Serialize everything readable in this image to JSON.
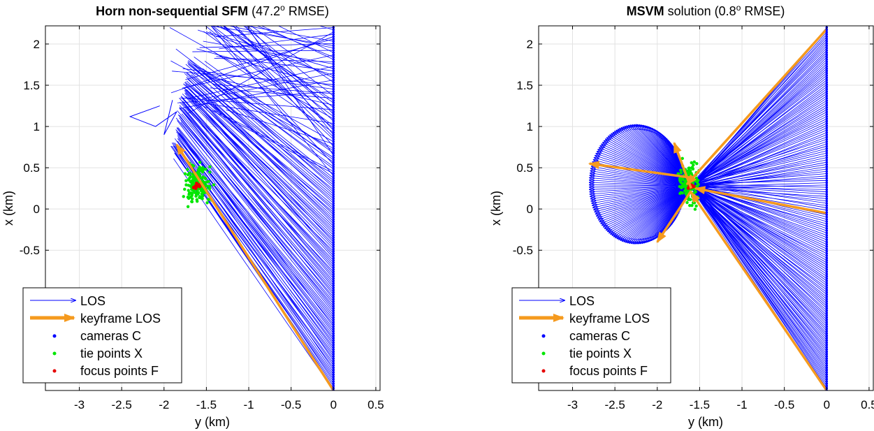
{
  "chart_data": [
    {
      "type": "line",
      "title_bold": "Horn non-sequential SFM",
      "title_rest_a": " (47.2",
      "title_sup": "o",
      "title_rest_b": " RMSE)",
      "xlabel": "y  (km)",
      "ylabel": "x  (km)",
      "xlim": [
        -3.4,
        0.55
      ],
      "ylim": [
        -2.2,
        2.22
      ],
      "xticks": [
        -3,
        -2.5,
        -2,
        -1.5,
        -1,
        -0.5,
        0,
        0.5
      ],
      "xtick_labels": [
        "-3",
        "-2.5",
        "-2",
        "-1.5",
        "-1",
        "-0.5",
        "0",
        "0.5"
      ],
      "yticks": [
        -0.5,
        0,
        0.5,
        1,
        1.5,
        2
      ],
      "ytick_labels": [
        "-0.5",
        "0",
        "0.5",
        "1",
        "1.5",
        "2"
      ],
      "grid": true,
      "legend_position": "bottom-left",
      "cameras": {
        "y": 0,
        "x_from": -2.2,
        "x_to": 2.2,
        "count": 160
      },
      "tie_points": {
        "center": [
          -1.6,
          0.3
        ],
        "spread": [
          0.13,
          0.2
        ],
        "count": 160
      },
      "focus_points": {
        "center": [
          -1.62,
          0.27
        ],
        "spread": [
          0.04,
          0.03
        ],
        "count": 8
      },
      "keyframe_los": [
        {
          "from": [
            0,
            -2.2
          ],
          "to": [
            -1.85,
            0.78
          ]
        }
      ],
      "los_target_band": {
        "x_from": 0.35,
        "x_to": 2.2,
        "y_from": -1.95,
        "y_to": -1.45
      },
      "outlier_path": [
        [
          -2.05,
          1.25
        ],
        [
          -2.4,
          1.12
        ],
        [
          -2.1,
          1.0
        ],
        [
          -1.85,
          1.18
        ],
        [
          -2.0,
          0.9
        ],
        [
          -1.9,
          1.32
        ]
      ]
    },
    {
      "type": "line",
      "title_bold": "MSVM",
      "title_rest_a": " solution (0.8",
      "title_sup": "o",
      "title_rest_b": " RMSE)",
      "xlabel": "y  (km)",
      "ylabel": "x  (km)",
      "xlim": [
        -3.4,
        0.55
      ],
      "ylim": [
        -2.2,
        2.22
      ],
      "xticks": [
        -3,
        -2.5,
        -2,
        -1.5,
        -1,
        -0.5,
        0,
        0.5
      ],
      "xtick_labels": [
        "-3",
        "-2.5",
        "-2",
        "-1.5",
        "-1",
        "-0.5",
        "0",
        "0.5"
      ],
      "yticks": [
        -0.5,
        0,
        0.5,
        1,
        1.5,
        2
      ],
      "ytick_labels": [
        "-0.5",
        "0",
        "0.5",
        "1",
        "1.5",
        "2"
      ],
      "grid": true,
      "legend_position": "bottom-left",
      "cameras": {
        "y": 0,
        "x_from": -2.2,
        "x_to": 2.2,
        "count": 160
      },
      "tie_points": {
        "center": [
          -1.62,
          0.3
        ],
        "spread": [
          0.1,
          0.22
        ],
        "count": 160
      },
      "focus_points": {
        "center": [
          -1.6,
          0.27
        ],
        "spread": [
          0.04,
          0.03
        ],
        "count": 8
      },
      "keyframe_los": [
        {
          "from": [
            0,
            2.18
          ],
          "to": [
            -1.65,
            0.3
          ]
        },
        {
          "from": [
            0,
            -0.05
          ],
          "to": [
            -1.55,
            0.25
          ]
        },
        {
          "from": [
            0,
            -2.2
          ],
          "to": [
            -1.6,
            0.2
          ]
        },
        {
          "from": [
            -1.6,
            0.38
          ],
          "to": [
            -2.8,
            0.55
          ]
        },
        {
          "from": [
            -1.6,
            0.25
          ],
          "to": [
            -1.8,
            0.8
          ]
        },
        {
          "from": [
            -1.6,
            0.22
          ],
          "to": [
            -2.0,
            -0.4
          ]
        }
      ],
      "loop": {
        "center": [
          -2.25,
          0.3
        ],
        "radius": [
          0.55,
          0.72
        ]
      }
    }
  ],
  "legend": {
    "los": "LOS",
    "keyframe": "keyframe LOS",
    "cameras": "cameras C",
    "tie": "tie points X",
    "focus": "focus points F"
  },
  "colors": {
    "los": "#0000ff",
    "keyframe": "#f59a1e",
    "cameras": "#0000ff",
    "tie": "#00e600",
    "focus": "#e60000",
    "grid": "#e2e2e2",
    "axis": "#000000"
  }
}
